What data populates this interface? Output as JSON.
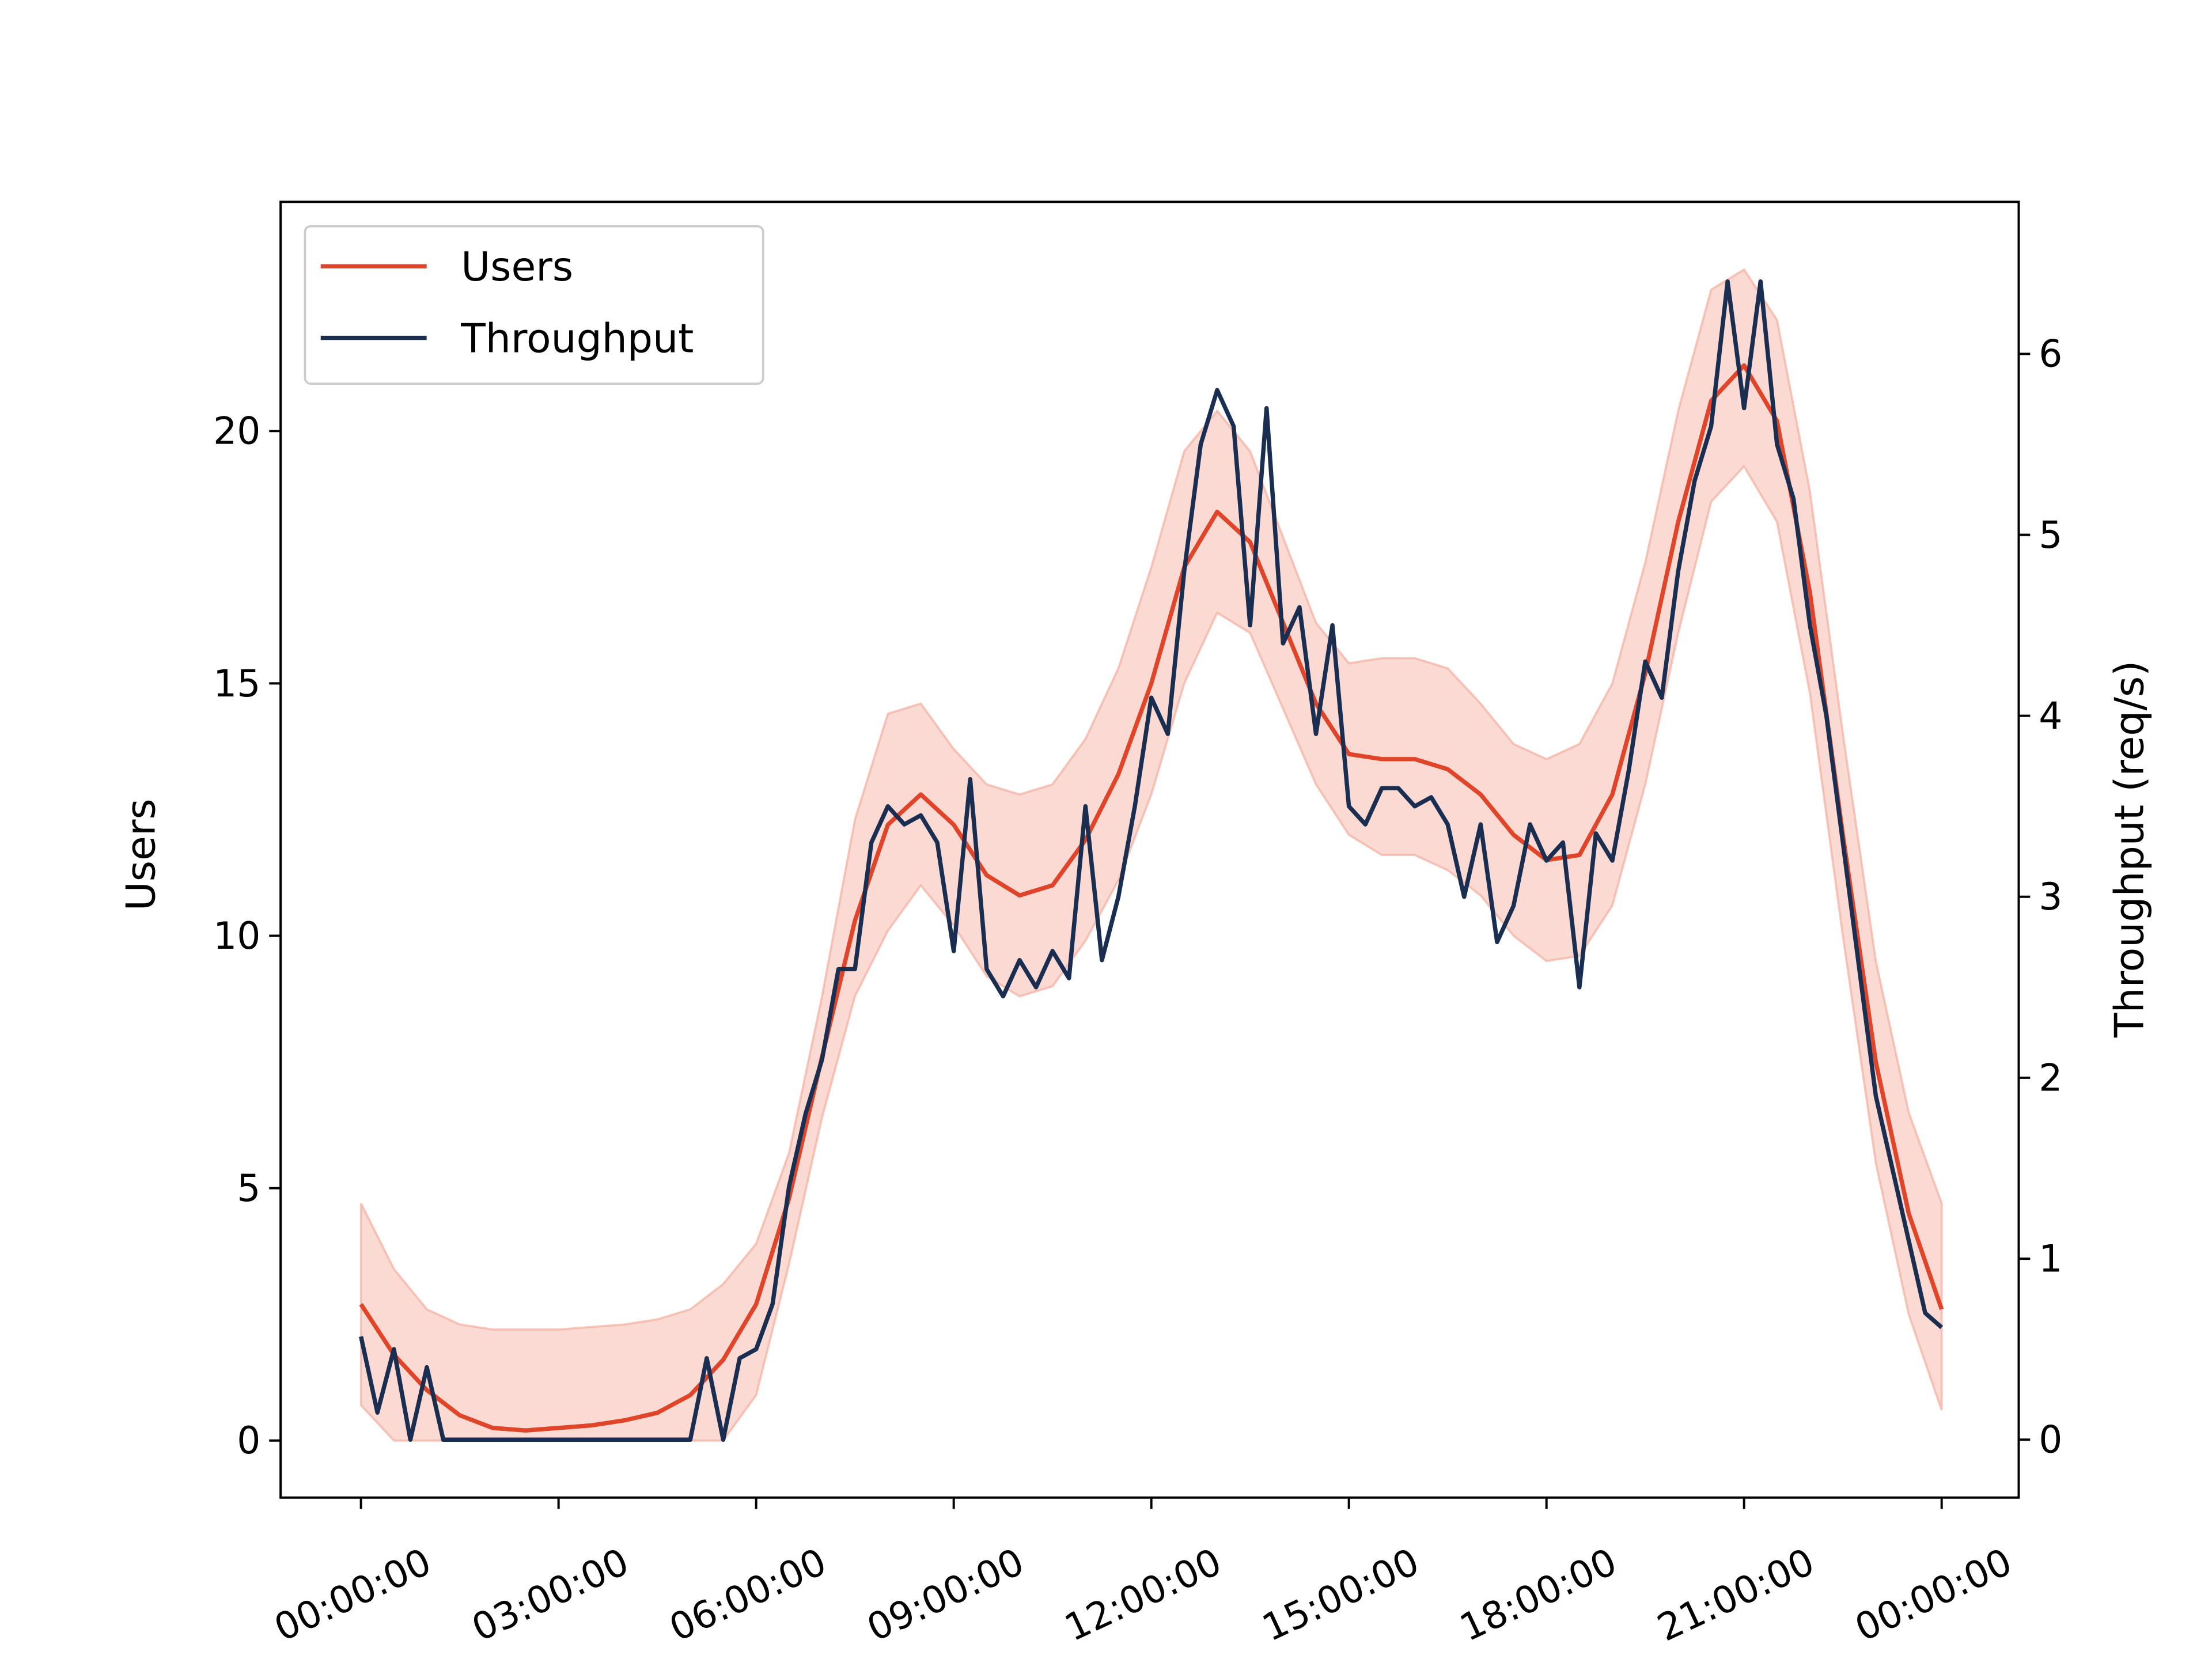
{
  "chart_data": {
    "type": "line",
    "xlabel": null,
    "ylabel": "Users",
    "y2label": "Throughput (req/s)",
    "xlim": [
      -1.22,
      25.17
    ],
    "xticks": [
      {
        "value": 0,
        "label": "00:00:00"
      },
      {
        "value": 3,
        "label": "03:00:00"
      },
      {
        "value": 6,
        "label": "06:00:00"
      },
      {
        "value": 9,
        "label": "09:00:00"
      },
      {
        "value": 12,
        "label": "12:00:00"
      },
      {
        "value": 15,
        "label": "15:00:00"
      },
      {
        "value": 18,
        "label": "18:00:00"
      },
      {
        "value": 21,
        "label": "21:00:00"
      },
      {
        "value": 24,
        "label": "00:00:00"
      }
    ],
    "ylim": [
      -1.13,
      24.54
    ],
    "yticks": [
      0,
      5,
      10,
      15,
      20
    ],
    "y2lim": [
      -0.32,
      6.84
    ],
    "y2ticks": [
      0,
      1,
      2,
      3,
      4,
      5,
      6
    ],
    "legend": "upper left",
    "series": [
      {
        "name": "Users",
        "color": "#e0452a",
        "axis": "y",
        "x": [
          0,
          0.5,
          1,
          1.5,
          2,
          2.5,
          3,
          3.5,
          4,
          4.5,
          5,
          5.5,
          6,
          6.5,
          7,
          7.5,
          8,
          8.5,
          9,
          9.5,
          10,
          10.5,
          11,
          11.5,
          12,
          12.5,
          13,
          13.5,
          14,
          14.5,
          15,
          15.5,
          16,
          16.5,
          17,
          17.5,
          18,
          18.5,
          19,
          19.5,
          20,
          20.5,
          21,
          21.5,
          22,
          22.5,
          23,
          23.5,
          24
        ],
        "values": [
          2.7,
          1.7,
          1.0,
          0.5,
          0.25,
          0.2,
          0.25,
          0.3,
          0.4,
          0.55,
          0.9,
          1.6,
          2.7,
          4.8,
          7.6,
          10.3,
          12.2,
          12.8,
          12.2,
          11.2,
          10.8,
          11.0,
          11.9,
          13.2,
          15.0,
          17.3,
          18.4,
          17.8,
          16.2,
          14.6,
          13.6,
          13.5,
          13.5,
          13.3,
          12.8,
          12.0,
          11.5,
          11.6,
          12.8,
          15.2,
          18.2,
          20.6,
          21.3,
          20.2,
          16.8,
          12.0,
          7.5,
          4.5,
          2.6
        ],
        "band": {
          "color": "#f4a392",
          "upper": [
            4.7,
            3.4,
            2.6,
            2.3,
            2.2,
            2.2,
            2.2,
            2.25,
            2.3,
            2.4,
            2.6,
            3.1,
            3.9,
            5.7,
            8.8,
            12.3,
            14.4,
            14.6,
            13.7,
            13.0,
            12.8,
            13.0,
            13.9,
            15.3,
            17.3,
            19.6,
            20.4,
            19.6,
            17.9,
            16.2,
            15.4,
            15.5,
            15.5,
            15.3,
            14.6,
            13.8,
            13.5,
            13.8,
            15.0,
            17.4,
            20.4,
            22.8,
            23.2,
            22.2,
            18.8,
            14.0,
            9.5,
            6.5,
            4.7
          ],
          "lower": [
            0.7,
            0,
            0,
            0,
            0,
            0,
            0,
            0,
            0,
            0,
            0,
            0,
            0.9,
            3.5,
            6.4,
            8.8,
            10.1,
            11.0,
            10.2,
            9.2,
            8.8,
            9.0,
            9.9,
            11.1,
            12.8,
            15.0,
            16.4,
            16.0,
            14.5,
            13.0,
            12.0,
            11.6,
            11.6,
            11.3,
            10.8,
            10.0,
            9.5,
            9.6,
            10.6,
            13.0,
            16.0,
            18.6,
            19.3,
            18.2,
            14.8,
            10.0,
            5.5,
            2.5,
            0.6
          ]
        }
      },
      {
        "name": "Throughput",
        "color": "#1a2e52",
        "axis": "y2",
        "x": [
          0,
          0.25,
          0.5,
          0.75,
          1,
          1.25,
          1.5,
          1.75,
          2,
          2.25,
          2.5,
          2.75,
          3,
          3.25,
          3.5,
          3.75,
          4,
          4.25,
          4.5,
          4.75,
          5,
          5.25,
          5.5,
          5.75,
          6,
          6.25,
          6.5,
          6.75,
          7,
          7.25,
          7.5,
          7.75,
          8,
          8.25,
          8.5,
          8.75,
          9,
          9.25,
          9.5,
          9.75,
          10,
          10.25,
          10.5,
          10.75,
          11,
          11.25,
          11.5,
          11.75,
          12,
          12.25,
          12.5,
          12.75,
          13,
          13.25,
          13.5,
          13.75,
          14,
          14.25,
          14.5,
          14.75,
          15,
          15.25,
          15.5,
          15.75,
          16,
          16.25,
          16.5,
          16.75,
          17,
          17.25,
          17.5,
          17.75,
          18,
          18.25,
          18.5,
          18.75,
          19,
          19.25,
          19.5,
          19.75,
          20,
          20.25,
          20.5,
          20.75,
          21,
          21.25,
          21.5,
          21.75,
          22,
          22.25,
          22.5,
          22.75,
          23,
          23.25,
          23.5,
          23.75,
          24
        ],
        "values": [
          0.57,
          0.15,
          0.5,
          0,
          0.4,
          0,
          0,
          0,
          0,
          0,
          0,
          0,
          0,
          0,
          0,
          0,
          0,
          0,
          0,
          0,
          0,
          0.45,
          0,
          0.45,
          0.5,
          0.75,
          1.4,
          1.8,
          2.1,
          2.6,
          2.6,
          3.3,
          3.5,
          3.4,
          3.45,
          3.3,
          2.7,
          3.65,
          2.6,
          2.45,
          2.65,
          2.5,
          2.7,
          2.55,
          3.5,
          2.65,
          3.0,
          3.5,
          4.1,
          3.9,
          4.8,
          5.5,
          5.8,
          5.6,
          4.5,
          5.7,
          4.4,
          4.6,
          3.9,
          4.5,
          3.5,
          3.4,
          3.6,
          3.6,
          3.5,
          3.55,
          3.4,
          3.0,
          3.4,
          2.75,
          2.95,
          3.4,
          3.2,
          3.3,
          2.5,
          3.35,
          3.2,
          3.7,
          4.3,
          4.1,
          4.8,
          5.3,
          5.6,
          6.4,
          5.7,
          6.4,
          5.5,
          5.2,
          4.5,
          4.0,
          3.3,
          2.6,
          1.9,
          1.5,
          1.1,
          0.7,
          0.62
        ]
      }
    ]
  }
}
